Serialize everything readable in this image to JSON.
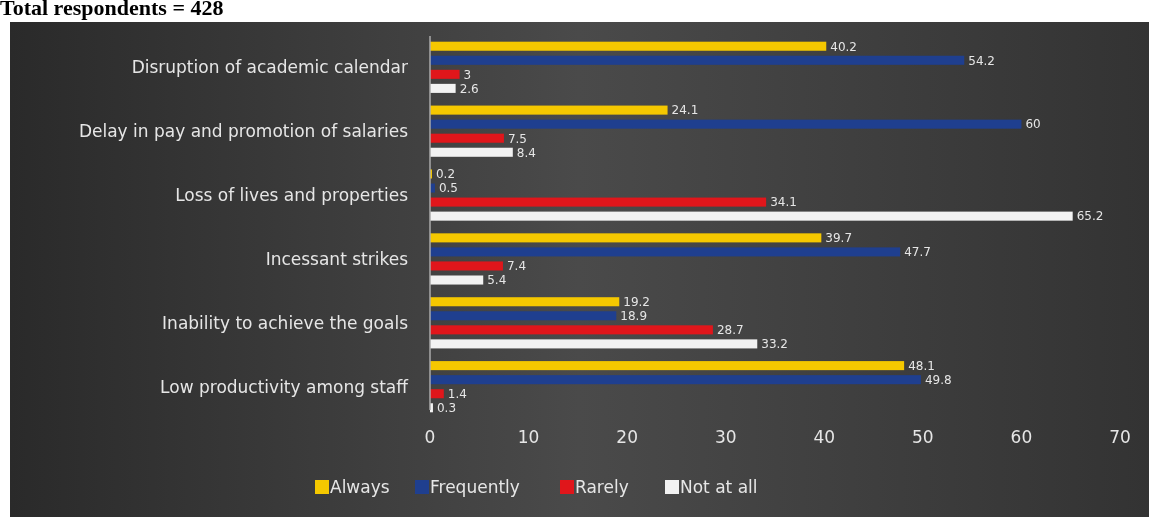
{
  "chart_data": {
    "type": "bar",
    "orientation": "horizontal",
    "title": "Total respondents = 428",
    "categories": [
      "Disruption of academic calendar",
      "Delay in pay and promotion of salaries",
      "Loss of lives and properties",
      "Incessant strikes",
      "Inability to achieve the goals",
      "Low productivity among staff"
    ],
    "series": [
      {
        "name": "Always",
        "color": "#f5c800",
        "values": [
          40.2,
          24.1,
          0.2,
          39.7,
          19.2,
          48.1
        ]
      },
      {
        "name": "Frequently",
        "color": "#1f3f8f",
        "values": [
          54.2,
          60,
          0.5,
          47.7,
          18.9,
          49.8
        ]
      },
      {
        "name": "Rarely",
        "color": "#e0161b",
        "values": [
          3,
          7.5,
          34.1,
          7.4,
          28.7,
          1.4
        ]
      },
      {
        "name": "Not at all",
        "color": "#f2f2f2",
        "values": [
          2.6,
          8.4,
          65.2,
          5.4,
          33.2,
          0.3
        ]
      }
    ],
    "xlim": [
      0,
      70
    ],
    "xticks": [
      0,
      10,
      20,
      30,
      40,
      50,
      60,
      70
    ],
    "data_labels": true,
    "legend": "bottom",
    "grid": false
  }
}
